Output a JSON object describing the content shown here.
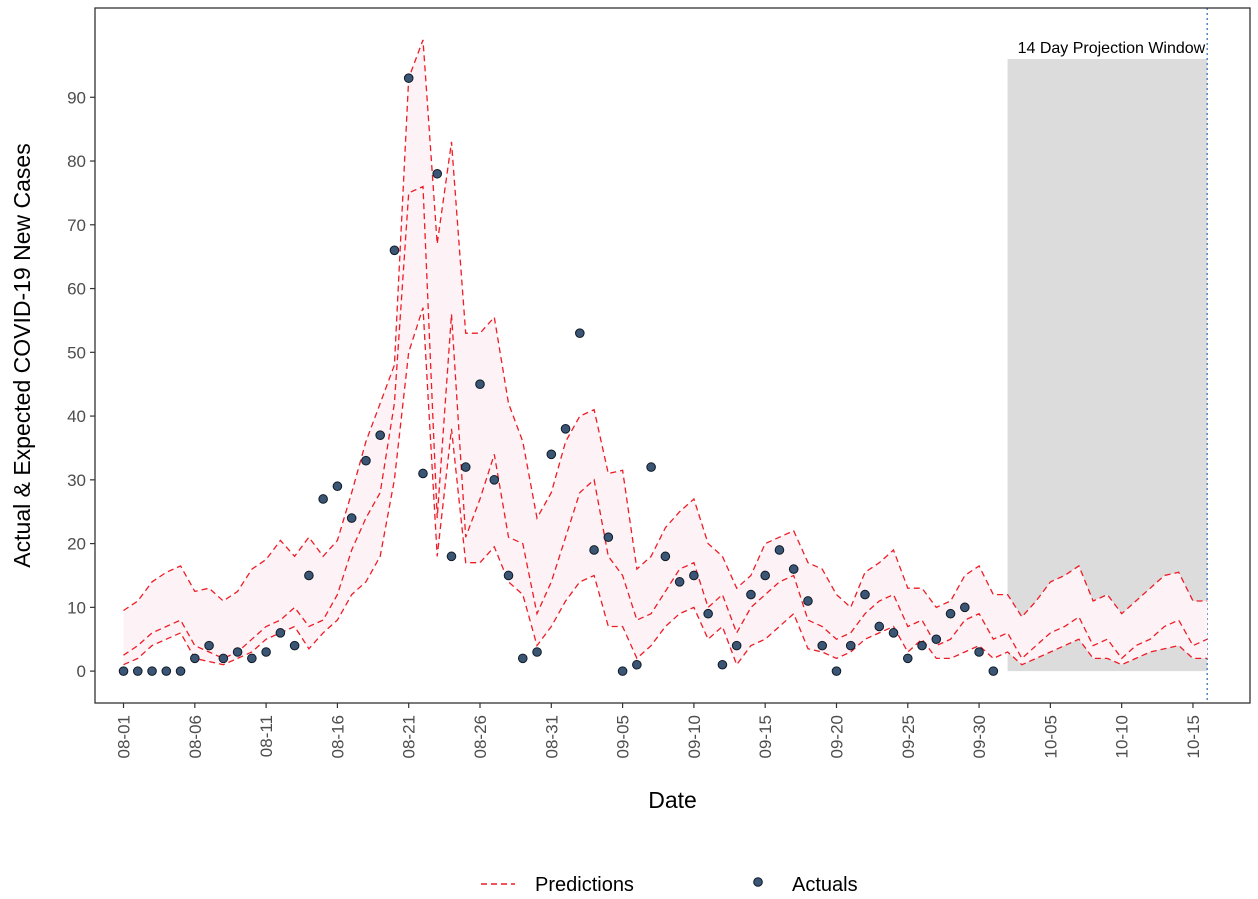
{
  "chart_data": {
    "type": "line",
    "xlabel": "Date",
    "ylabel": "Actual & Expected COVID-19 New Cases",
    "x_range": [
      "07-30",
      "10-19"
    ],
    "ylim": [
      -5,
      104
    ],
    "y_ticks": [
      0,
      10,
      20,
      30,
      40,
      50,
      60,
      70,
      80,
      90
    ],
    "x_tick_labels": [
      "08-01",
      "08-06",
      "08-11",
      "08-16",
      "08-21",
      "08-26",
      "08-31",
      "09-05",
      "09-10",
      "09-15",
      "09-20",
      "09-25",
      "09-30",
      "10-05",
      "10-10",
      "10-15"
    ],
    "grid": false,
    "legend": {
      "position": "bottom",
      "items": [
        {
          "label": "Predictions",
          "key": "predictions",
          "style": "dashed-line"
        },
        {
          "label": "Actuals",
          "key": "actuals",
          "style": "point"
        }
      ]
    },
    "projection_window": {
      "label": "14 Day Projection Window",
      "start": "10-02",
      "end": "10-16",
      "y_max": 96,
      "vline": "10-16"
    },
    "predictions": {
      "upper": [
        9.5,
        11,
        14,
        15.5,
        16.5,
        12.5,
        13,
        11,
        12.5,
        16,
        17.5,
        20.5,
        18,
        21,
        18,
        20.5,
        28,
        36,
        42,
        48,
        93,
        99,
        67,
        83,
        53,
        53,
        55.5,
        42,
        36,
        24,
        28,
        36,
        40,
        41,
        31,
        31.5,
        16,
        18,
        22.5,
        25,
        27,
        20,
        18,
        13,
        15,
        20,
        21,
        22,
        17,
        16,
        12,
        10,
        15.5,
        17,
        19,
        13,
        13,
        10,
        11,
        15,
        16.5,
        12,
        12,
        8.5,
        11,
        14,
        15,
        16.5,
        11,
        12,
        9,
        11,
        13,
        15,
        15.5,
        11,
        11
      ],
      "middle": [
        2.5,
        4,
        6,
        7,
        8,
        4,
        3,
        2,
        3,
        5,
        7,
        8,
        10,
        7,
        8,
        12,
        19,
        24,
        28,
        42,
        75,
        76,
        24,
        56,
        21,
        27,
        34,
        21,
        20,
        9,
        14,
        21,
        28,
        30,
        18,
        15,
        8,
        9,
        12.5,
        16,
        17,
        10,
        12,
        6,
        10,
        12,
        14,
        15,
        8,
        7,
        5,
        6,
        9,
        11,
        12,
        7,
        8,
        4,
        5,
        8,
        9,
        5,
        6,
        2,
        4,
        6,
        7,
        8.5,
        4,
        5,
        2,
        4,
        5,
        7,
        8,
        4,
        5
      ],
      "lower": [
        1,
        2,
        4,
        5,
        6,
        2,
        1.5,
        1,
        2,
        3,
        5,
        6,
        7,
        3.5,
        6,
        8,
        12,
        14,
        18,
        30,
        50,
        57,
        18,
        38,
        17,
        17,
        19.5,
        14,
        12,
        4,
        7,
        11,
        14,
        15,
        7,
        7,
        2,
        4,
        7,
        9,
        10,
        5,
        7,
        1,
        4,
        5,
        7,
        9,
        3.5,
        3,
        2,
        3,
        5,
        6,
        7,
        3,
        5,
        2,
        2,
        3,
        4,
        2,
        3,
        1,
        2,
        3,
        4,
        5,
        2,
        2,
        1,
        2,
        3,
        3.5,
        4,
        2,
        2
      ]
    },
    "actuals": [
      {
        "x": "08-01",
        "y": 0
      },
      {
        "x": "08-02",
        "y": 0
      },
      {
        "x": "08-03",
        "y": 0
      },
      {
        "x": "08-04",
        "y": 0
      },
      {
        "x": "08-05",
        "y": 0
      },
      {
        "x": "08-06",
        "y": 2
      },
      {
        "x": "08-07",
        "y": 4
      },
      {
        "x": "08-08",
        "y": 2
      },
      {
        "x": "08-09",
        "y": 3
      },
      {
        "x": "08-10",
        "y": 2
      },
      {
        "x": "08-11",
        "y": 3
      },
      {
        "x": "08-12",
        "y": 6
      },
      {
        "x": "08-13",
        "y": 4
      },
      {
        "x": "08-14",
        "y": 15
      },
      {
        "x": "08-15",
        "y": 27
      },
      {
        "x": "08-16",
        "y": 29
      },
      {
        "x": "08-17",
        "y": 24
      },
      {
        "x": "08-18",
        "y": 33
      },
      {
        "x": "08-19",
        "y": 37
      },
      {
        "x": "08-20",
        "y": 66
      },
      {
        "x": "08-21",
        "y": 93
      },
      {
        "x": "08-22",
        "y": 31
      },
      {
        "x": "08-23",
        "y": 78
      },
      {
        "x": "08-24",
        "y": 18
      },
      {
        "x": "08-25",
        "y": 32
      },
      {
        "x": "08-26",
        "y": 45
      },
      {
        "x": "08-27",
        "y": 30
      },
      {
        "x": "08-28",
        "y": 15
      },
      {
        "x": "08-29",
        "y": 2
      },
      {
        "x": "08-30",
        "y": 3
      },
      {
        "x": "08-31",
        "y": 34
      },
      {
        "x": "09-01",
        "y": 38
      },
      {
        "x": "09-02",
        "y": 53
      },
      {
        "x": "09-03",
        "y": 19
      },
      {
        "x": "09-04",
        "y": 21
      },
      {
        "x": "09-05",
        "y": 0
      },
      {
        "x": "09-06",
        "y": 1
      },
      {
        "x": "09-07",
        "y": 32
      },
      {
        "x": "09-08",
        "y": 18
      },
      {
        "x": "09-09",
        "y": 14
      },
      {
        "x": "09-10",
        "y": 15
      },
      {
        "x": "09-11",
        "y": 9
      },
      {
        "x": "09-12",
        "y": 1
      },
      {
        "x": "09-13",
        "y": 4
      },
      {
        "x": "09-14",
        "y": 12
      },
      {
        "x": "09-15",
        "y": 15
      },
      {
        "x": "09-16",
        "y": 19
      },
      {
        "x": "09-17",
        "y": 16
      },
      {
        "x": "09-18",
        "y": 11
      },
      {
        "x": "09-19",
        "y": 4
      },
      {
        "x": "09-20",
        "y": 0
      },
      {
        "x": "09-21",
        "y": 4
      },
      {
        "x": "09-22",
        "y": 12
      },
      {
        "x": "09-23",
        "y": 7
      },
      {
        "x": "09-24",
        "y": 6
      },
      {
        "x": "09-25",
        "y": 2
      },
      {
        "x": "09-26",
        "y": 4
      },
      {
        "x": "09-27",
        "y": 5
      },
      {
        "x": "09-28",
        "y": 9
      },
      {
        "x": "09-29",
        "y": 10
      },
      {
        "x": "09-30",
        "y": 3
      },
      {
        "x": "10-01",
        "y": 0
      }
    ],
    "prediction_dates_start": "08-01",
    "colors": {
      "predictions": "#ee1c25",
      "actuals_fill": "#3b5574",
      "actuals_edge": "#0f1a26",
      "ribbon": "#fdf3f6",
      "window": "#dcdcdc",
      "vline": "#4f86c6",
      "frame": "#333333"
    }
  }
}
